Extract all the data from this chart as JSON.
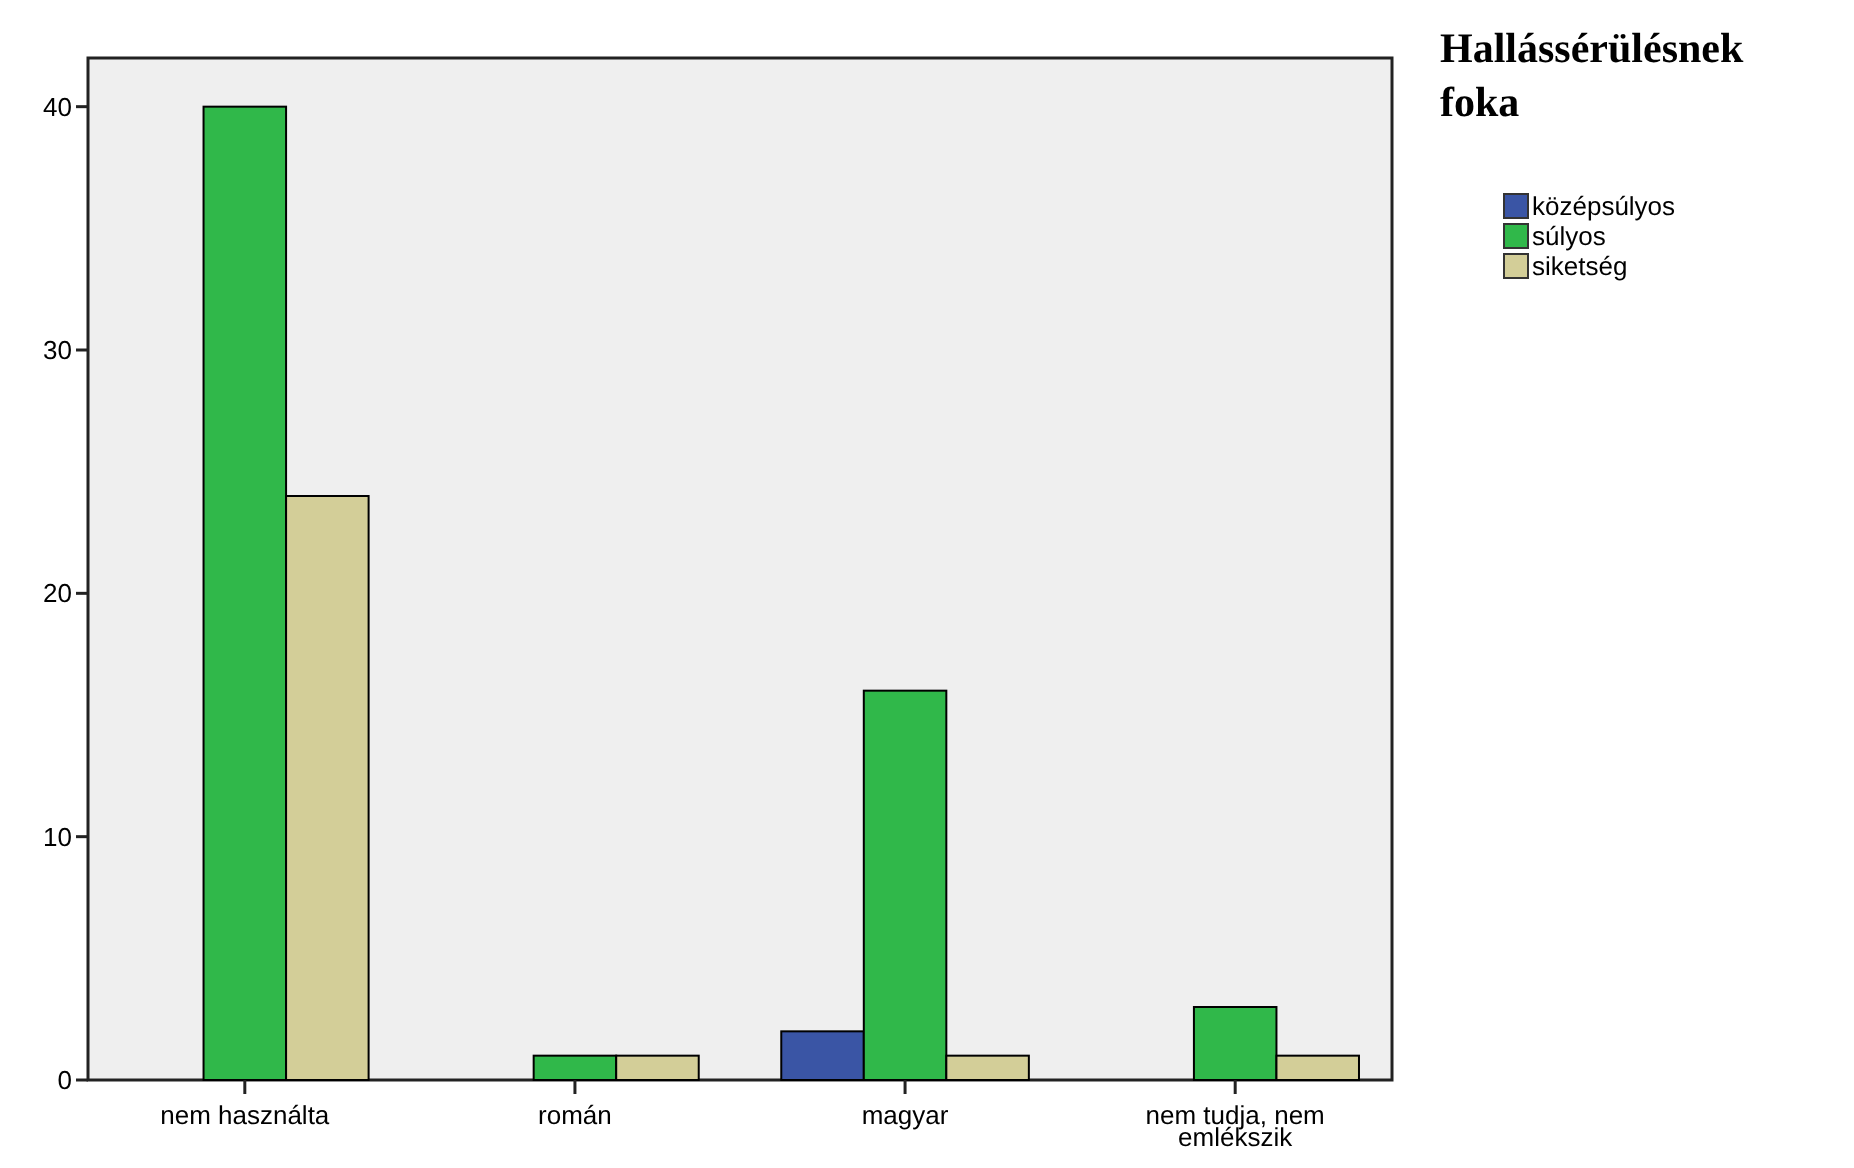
{
  "chart_data": {
    "type": "bar",
    "legend_title": "Hallássérülésnek foka",
    "categories": [
      "nem használta",
      "román",
      "magyar",
      "nem tudja, nem emlékszik"
    ],
    "series": [
      {
        "name": "középsúlyos",
        "color": "#3a55a5",
        "values": [
          null,
          null,
          2,
          null
        ]
      },
      {
        "name": "súlyos",
        "color": "#30b84a",
        "values": [
          40,
          1,
          16,
          3
        ]
      },
      {
        "name": "siketség",
        "color": "#d3ce98",
        "values": [
          24,
          1,
          1,
          1
        ]
      }
    ],
    "ylim": [
      0,
      42
    ],
    "yticks": [
      0,
      10,
      20,
      30,
      40
    ],
    "grid": false,
    "legend": "right"
  }
}
